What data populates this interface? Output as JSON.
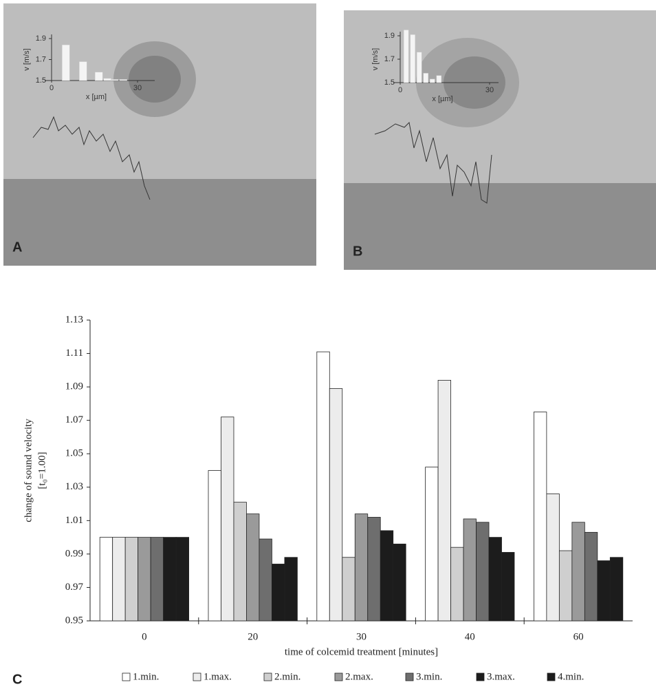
{
  "chart_data": [
    {
      "type": "bar",
      "panel": "A",
      "x_label": "x [µm]",
      "y_label": "v [m/s]",
      "x": [
        5,
        11,
        16.5,
        19.5,
        22,
        25
      ],
      "values": [
        1.84,
        1.68,
        1.58,
        1.52,
        1.51,
        1.51
      ],
      "color": "#f4f4f4",
      "xlim": [
        0,
        36
      ],
      "xticks": [
        0,
        30
      ],
      "ylim": [
        1.5,
        1.9
      ],
      "yticks": [
        1.5,
        1.7,
        1.9
      ]
    },
    {
      "type": "bar",
      "panel": "B",
      "x_label": "x [µm]",
      "y_label": "v [m/s]",
      "x": [
        2,
        4.2,
        6.4,
        8.6,
        10.8,
        13
      ],
      "values": [
        1.95,
        1.91,
        1.76,
        1.58,
        1.53,
        1.56
      ],
      "color": "#f4f4f4",
      "xlim": [
        0,
        33
      ],
      "xticks": [
        0,
        30
      ],
      "ylim": [
        1.5,
        1.9
      ],
      "yticks": [
        1.5,
        1.7,
        1.9
      ]
    },
    {
      "type": "grouped-bar",
      "panel": "C",
      "x_label": "time of colcemid treatment [minutes]",
      "y_label": [
        "change of sound velocity",
        "[t₀=1.00]"
      ],
      "categories": [
        "0",
        "20",
        "30",
        "40",
        "60"
      ],
      "series": [
        {
          "name": "1.min.",
          "color": "#ffffff",
          "values": [
            1.0,
            1.04,
            1.111,
            1.042,
            1.075
          ]
        },
        {
          "name": "1.max.",
          "color": "#ececec",
          "values": [
            1.0,
            1.072,
            1.089,
            1.094,
            1.026
          ]
        },
        {
          "name": "2.min.",
          "color": "#cfcfcf",
          "values": [
            1.0,
            1.021,
            0.988,
            0.994,
            0.992
          ]
        },
        {
          "name": "2.max.",
          "color": "#9a9a9a",
          "values": [
            1.0,
            1.014,
            1.014,
            1.011,
            1.009
          ]
        },
        {
          "name": "3.min.",
          "color": "#6e6e6e",
          "values": [
            1.0,
            0.999,
            1.012,
            1.009,
            1.003
          ]
        },
        {
          "name": "3.max.",
          "color": "#1c1c1c",
          "values": [
            1.0,
            0.984,
            1.004,
            1.0,
            0.986
          ]
        },
        {
          "name": "4.min.",
          "color": "#1c1c1c",
          "values": [
            1.0,
            0.988,
            0.996,
            0.991,
            0.988
          ]
        }
      ],
      "ylim": [
        0.95,
        1.13
      ],
      "yticks": [
        0.95,
        0.97,
        0.99,
        1.01,
        1.03,
        1.05,
        1.07,
        1.09,
        1.11,
        1.13
      ]
    }
  ]
}
